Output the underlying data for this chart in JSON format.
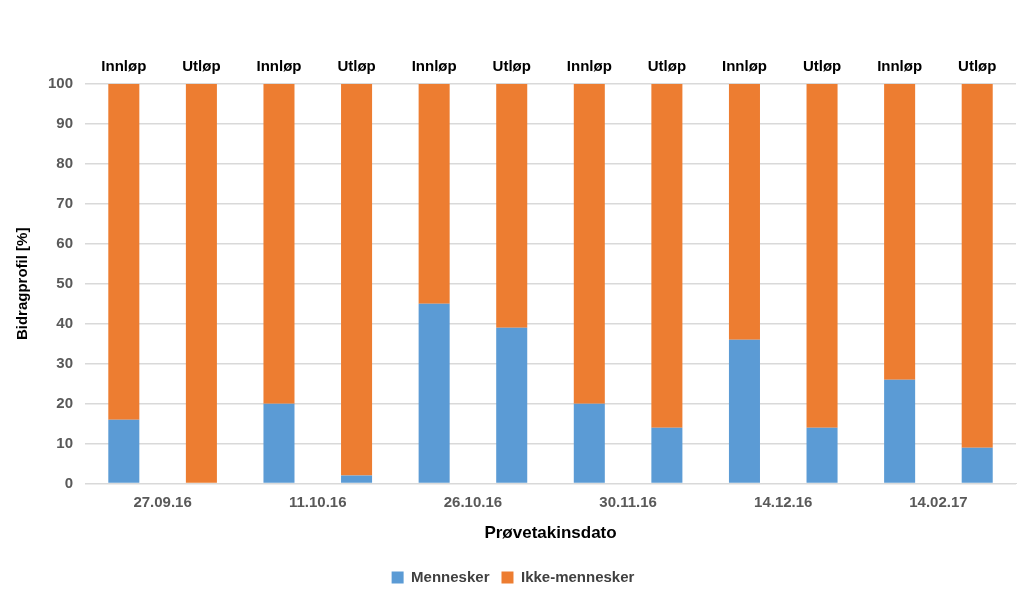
{
  "chart_data": {
    "type": "bar",
    "stacked": true,
    "categories": [
      "Innløp",
      "Utløp",
      "Innløp",
      "Utløp",
      "Innløp",
      "Utløp",
      "Innløp",
      "Utløp",
      "Innløp",
      "Utløp",
      "Innløp",
      "Utløp"
    ],
    "series": [
      {
        "name": "Mennesker",
        "color": "#5b9bd5",
        "values": [
          16,
          0,
          20,
          2,
          45,
          39,
          20,
          14,
          36,
          14,
          26,
          9
        ]
      },
      {
        "name": "Ikke-mennesker",
        "color": "#ed7d31",
        "values": [
          84,
          100,
          80,
          98,
          55,
          61,
          80,
          86,
          64,
          86,
          74,
          91
        ]
      }
    ],
    "annotations": [
      "27.09.16",
      "11.10.16",
      "26.10.16",
      "30.11.16",
      "14.12.16",
      "14.02.17"
    ],
    "xlabel": "Prøvetakinsdato",
    "ylabel": "Bidragprofil [%]",
    "ylim": [
      0,
      100
    ],
    "yticks": [
      0,
      10,
      20,
      30,
      40,
      50,
      60,
      70,
      80,
      90,
      100
    ],
    "grid": "y",
    "legend": "bottom"
  }
}
